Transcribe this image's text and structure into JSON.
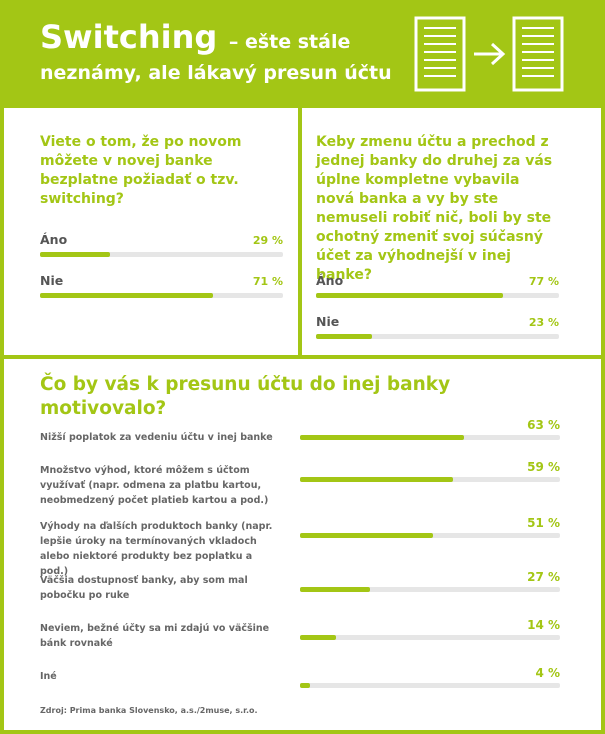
{
  "header": {
    "title": "Switching",
    "subtitle": "– ešte stále",
    "subtitle2": "neznámy, ale lákavý presun účtu"
  },
  "chart_data": [
    {
      "type": "bar",
      "title": "Viete o tom, že po novom môžete v novej banke bezplatne požiadať o tzv. switching?",
      "categories": [
        "Áno",
        "Nie"
      ],
      "values": [
        29,
        71
      ],
      "value_labels": [
        "29 %",
        "71 %"
      ],
      "xlim": [
        0,
        100
      ],
      "color": "#a3c615"
    },
    {
      "type": "bar",
      "title": "Keby zmenu účtu a prechod z jednej banky do druhej za vás úplne kompletne vybavila nová banka a vy by ste nemuseli robiť nič, boli by ste ochotný zmeniť svoj súčasný účet za výhodnejší v inej banke?",
      "categories": [
        "Áno",
        "Nie"
      ],
      "values": [
        77,
        23
      ],
      "value_labels": [
        "77 %",
        "23 %"
      ],
      "xlim": [
        0,
        100
      ],
      "color": "#a3c615"
    },
    {
      "type": "bar",
      "title": "Čo by vás k presunu účtu do inej banky motivovalo?",
      "categories": [
        "Nižší poplatok za vedeniu účtu v inej banke",
        "Množstvo výhod, ktoré môžem s účtom využívať (napr. odmena za platbu kartou, neobmedzený počet platieb kartou a pod.)",
        "Výhody na ďalších produktoch banky (napr. lepšie úroky na termínovaných vkladoch alebo niektoré produkty bez poplatku a pod.)",
        "Väčšia dostupnosť banky, aby som mal pobočku po ruke",
        "Neviem, bežné účty sa mi zdajú vo väčšine bánk rovnaké",
        "Iné"
      ],
      "values": [
        63,
        59,
        51,
        27,
        14,
        4
      ],
      "value_labels": [
        "63 %",
        "59 %",
        "51 %",
        "27 %",
        "14 %",
        "4 %"
      ],
      "xlim": [
        0,
        100
      ],
      "color": "#a3c615",
      "source": "Zdroj: Prima banka Slovensko, a.s./2muse, s.r.o."
    }
  ]
}
